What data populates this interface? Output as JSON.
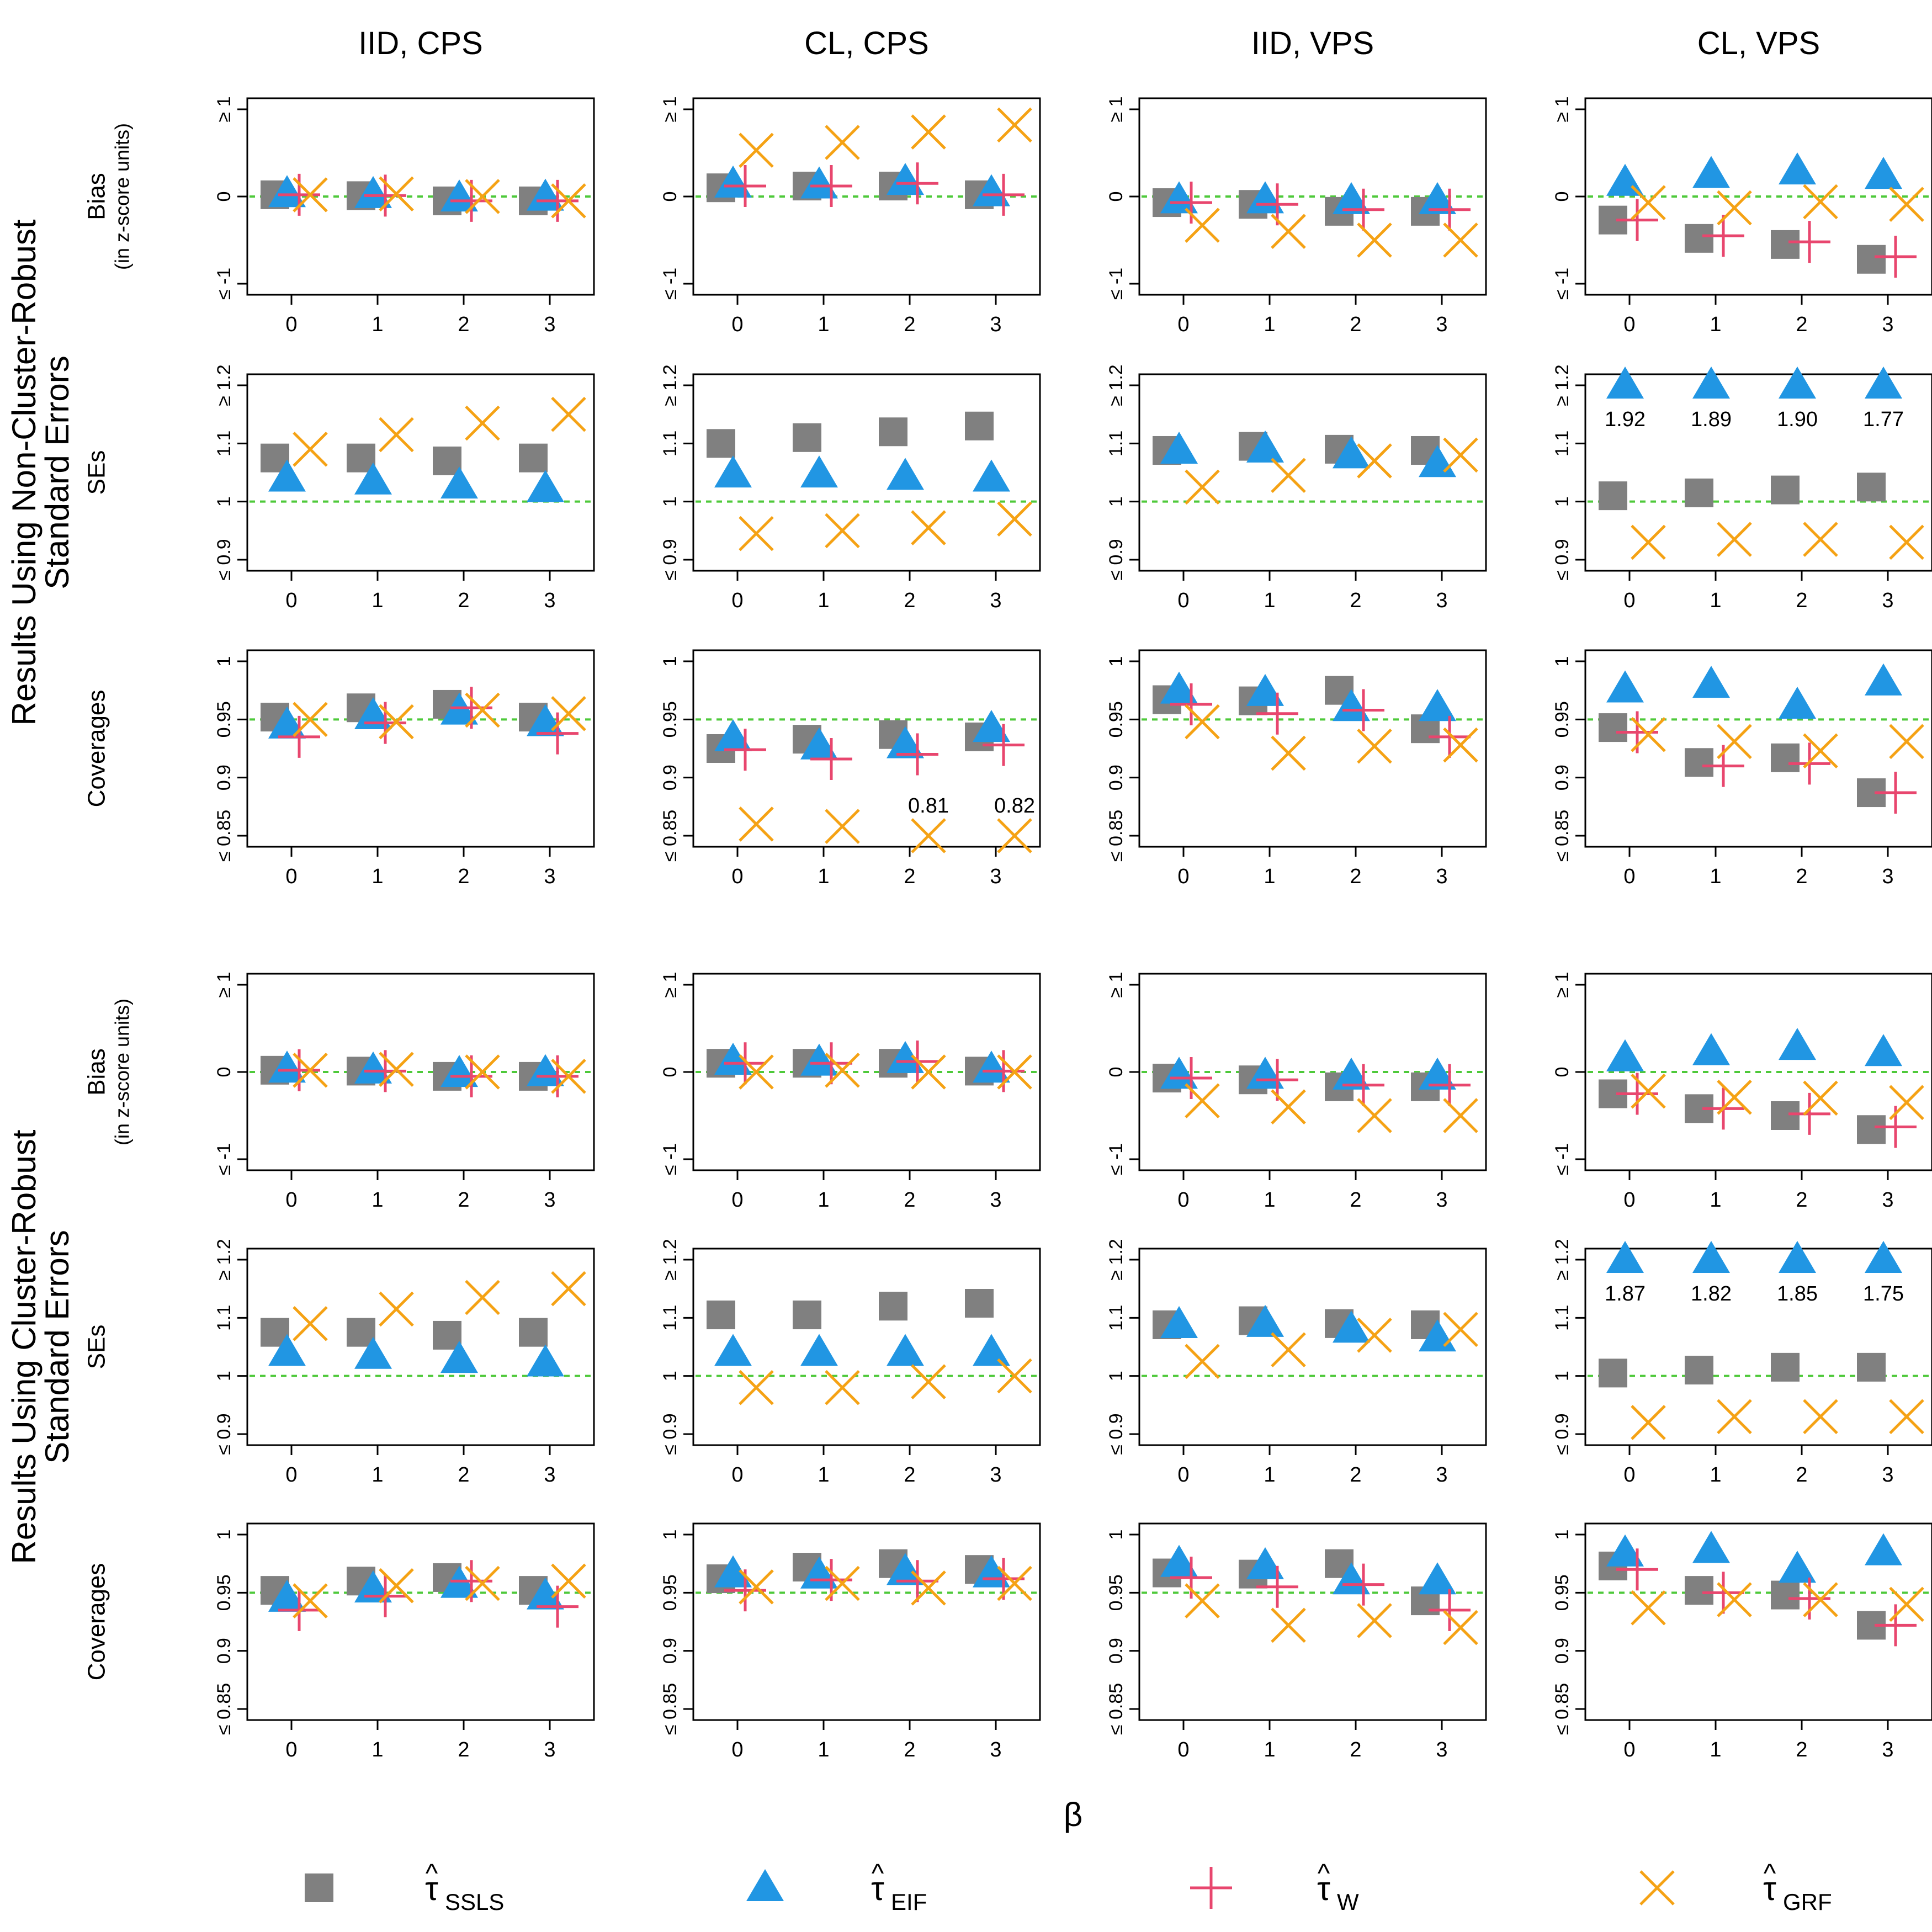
{
  "figure": {
    "column_titles": [
      "IID, CPS",
      "CL, CPS",
      "IID, VPS",
      "CL, VPS"
    ],
    "section_labels": [
      "Results Using Non-Cluster-Robust\nStandard Errors",
      "Results Using Cluster-Robust\nStandard Errors"
    ],
    "row_labels": {
      "bias": [
        "Bias",
        "(in z-score units)"
      ],
      "ses": [
        "SEs"
      ],
      "coverages": [
        "Coverages"
      ]
    },
    "xlabel": "β",
    "legend": [
      {
        "hat": "^",
        "label": "τ",
        "sub": "SSLS"
      },
      {
        "hat": "^",
        "label": "τ",
        "sub": "EIF"
      },
      {
        "hat": "^",
        "label": "τ",
        "sub": "W"
      },
      {
        "hat": "^",
        "label": "τ",
        "sub": "GRF"
      }
    ]
  },
  "chart_data": {
    "type": "scatter",
    "x": [
      0,
      1,
      2,
      3
    ],
    "xlabel": "β",
    "series_order": [
      "SSLS",
      "EIF",
      "W",
      "GRF"
    ],
    "colors": {
      "SSLS": "#808080",
      "EIF": "#2196e3",
      "W": "#e8466e",
      "GRF": "#f5a214",
      "reference": "#4ec93a"
    },
    "markers": {
      "SSLS": "square",
      "EIF": "triangle",
      "W": "plus",
      "GRF": "cross"
    },
    "row_types": {
      "bias": {
        "ylim": [
          -1,
          1
        ],
        "ref": 0,
        "ticks": [
          -1,
          0,
          1
        ],
        "tick_labels": [
          "≤ -1",
          "0",
          "≥ 1"
        ]
      },
      "ses": {
        "ylim": [
          0.9,
          1.2
        ],
        "ref": 1,
        "ticks": [
          0.9,
          1,
          1.1,
          1.2
        ],
        "tick_labels": [
          "≤ 0.9",
          "1",
          "1.1",
          "≥ 1.2"
        ]
      },
      "cov": {
        "ylim": [
          0.85,
          1
        ],
        "ref": 0.95,
        "ticks": [
          0.85,
          0.9,
          0.95,
          1
        ],
        "tick_labels": [
          "≤ 0.85",
          "0.9",
          "0.95",
          "1"
        ]
      }
    },
    "sections": [
      {
        "name": "non-cluster-robust",
        "rows": [
          {
            "type": "bias",
            "panels": [
              {
                "SSLS": [
                  0.02,
                  0.01,
                  -0.05,
                  -0.05
                ],
                "EIF": [
                  0.03,
                  0.02,
                  -0.02,
                  -0.01
                ],
                "W": [
                  0.02,
                  0.01,
                  -0.05,
                  -0.05
                ],
                "GRF": [
                  0.02,
                  0.03,
                  0.0,
                  -0.05
                ]
              },
              {
                "SSLS": [
                  0.1,
                  0.12,
                  0.12,
                  0.02
                ],
                "EIF": [
                  0.14,
                  0.13,
                  0.17,
                  0.04
                ],
                "W": [
                  0.12,
                  0.12,
                  0.15,
                  0.02
                ],
                "GRF": [
                  0.53,
                  0.62,
                  0.74,
                  0.82
                ]
              },
              {
                "SSLS": [
                  -0.07,
                  -0.09,
                  -0.17,
                  -0.17
                ],
                "EIF": [
                  -0.04,
                  -0.04,
                  -0.05,
                  -0.05
                ],
                "W": [
                  -0.07,
                  -0.09,
                  -0.15,
                  -0.15
                ],
                "GRF": [
                  -0.33,
                  -0.4,
                  -0.5,
                  -0.5
                ]
              },
              {
                "SSLS": [
                  -0.27,
                  -0.48,
                  -0.55,
                  -0.72
                ],
                "EIF": [
                  0.16,
                  0.25,
                  0.29,
                  0.24
                ],
                "W": [
                  -0.27,
                  -0.45,
                  -0.52,
                  -0.69
                ],
                "GRF": [
                  -0.07,
                  -0.13,
                  -0.06,
                  -0.09
                ]
              }
            ]
          },
          {
            "type": "ses",
            "panels": [
              {
                "SSLS": [
                  1.075,
                  1.075,
                  1.07,
                  1.075
                ],
                "EIF": [
                  1.04,
                  1.035,
                  1.028,
                  1.022
                ],
                "W": [
                  null,
                  null,
                  null,
                  null
                ],
                "GRF": [
                  1.09,
                  1.115,
                  1.135,
                  1.15
                ]
              },
              {
                "SSLS": [
                  1.1,
                  1.11,
                  1.12,
                  1.13
                ],
                "EIF": [
                  1.047,
                  1.047,
                  1.043,
                  1.04
                ],
                "W": [
                  null,
                  null,
                  null,
                  null
                ],
                "GRF": [
                  0.945,
                  0.95,
                  0.955,
                  0.97
                ]
              },
              {
                "SSLS": [
                  1.088,
                  1.095,
                  1.09,
                  1.088
                ],
                "EIF": [
                  1.088,
                  1.09,
                  1.08,
                  1.065
                ],
                "W": [
                  null,
                  null,
                  null,
                  null
                ],
                "GRF": [
                  1.025,
                  1.045,
                  1.07,
                  1.08
                ]
              },
              {
                "SSLS": [
                  1.01,
                  1.015,
                  1.02,
                  1.025
                ],
                "EIF": [
                  1.92,
                  1.89,
                  1.9,
                  1.77
                ],
                "W": [
                  null,
                  null,
                  null,
                  null
                ],
                "GRF": [
                  0.93,
                  0.935,
                  0.935,
                  0.93
                ]
              }
            ]
          },
          {
            "type": "cov",
            "panels": [
              {
                "SSLS": [
                  0.952,
                  0.96,
                  0.963,
                  0.952
                ],
                "EIF": [
                  0.945,
                  0.953,
                  0.957,
                  0.947
                ],
                "W": [
                  0.935,
                  0.947,
                  0.96,
                  0.938
                ],
                "GRF": [
                  0.95,
                  0.948,
                  0.958,
                  0.955
                ]
              },
              {
                "SSLS": [
                  0.925,
                  0.933,
                  0.937,
                  0.935
                ],
                "EIF": [
                  0.934,
                  0.927,
                  0.928,
                  0.942
                ],
                "W": [
                  0.924,
                  0.916,
                  0.92,
                  0.928
                ],
                "GRF": [
                  0.86,
                  0.858,
                  0.81,
                  0.82
                ]
              },
              {
                "SSLS": [
                  0.967,
                  0.966,
                  0.975,
                  0.942
                ],
                "EIF": [
                  0.975,
                  0.973,
                  0.96,
                  0.96
                ],
                "W": [
                  0.963,
                  0.955,
                  0.958,
                  0.935
                ],
                "GRF": [
                  0.948,
                  0.921,
                  0.927,
                  0.928
                ]
              },
              {
                "SSLS": [
                  0.943,
                  0.913,
                  0.917,
                  0.887
                ],
                "EIF": [
                  0.976,
                  0.98,
                  0.962,
                  0.982
                ],
                "W": [
                  0.939,
                  0.91,
                  0.912,
                  0.887
                ],
                "GRF": [
                  0.937,
                  0.931,
                  0.923,
                  0.931
                ]
              }
            ]
          }
        ]
      },
      {
        "name": "cluster-robust",
        "rows": [
          {
            "type": "bias",
            "panels": [
              {
                "SSLS": [
                  0.02,
                  0.01,
                  -0.05,
                  -0.05
                ],
                "EIF": [
                  0.03,
                  0.02,
                  -0.02,
                  -0.01
                ],
                "W": [
                  0.02,
                  0.01,
                  -0.05,
                  -0.05
                ],
                "GRF": [
                  0.02,
                  0.03,
                  0.0,
                  -0.05
                ]
              },
              {
                "SSLS": [
                  0.1,
                  0.1,
                  0.1,
                  0.01
                ],
                "EIF": [
                  0.12,
                  0.11,
                  0.14,
                  0.03
                ],
                "W": [
                  0.1,
                  0.1,
                  0.12,
                  0.01
                ],
                "GRF": [
                  0.0,
                  0.02,
                  0.0,
                  0.0
                ]
              },
              {
                "SSLS": [
                  -0.07,
                  -0.09,
                  -0.17,
                  -0.17
                ],
                "EIF": [
                  -0.04,
                  -0.04,
                  -0.05,
                  -0.05
                ],
                "W": [
                  -0.07,
                  -0.09,
                  -0.15,
                  -0.15
                ],
                "GRF": [
                  -0.33,
                  -0.4,
                  -0.5,
                  -0.5
                ]
              },
              {
                "SSLS": [
                  -0.25,
                  -0.42,
                  -0.5,
                  -0.66
                ],
                "EIF": [
                  0.16,
                  0.23,
                  0.29,
                  0.22
                ],
                "W": [
                  -0.25,
                  -0.42,
                  -0.48,
                  -0.63
                ],
                "GRF": [
                  -0.22,
                  -0.29,
                  -0.3,
                  -0.35
                ]
              }
            ]
          },
          {
            "type": "ses",
            "panels": [
              {
                "SSLS": [
                  1.075,
                  1.075,
                  1.07,
                  1.075
                ],
                "EIF": [
                  1.04,
                  1.035,
                  1.028,
                  1.022
                ],
                "W": [
                  null,
                  null,
                  null,
                  null
                ],
                "GRF": [
                  1.09,
                  1.115,
                  1.135,
                  1.15
                ]
              },
              {
                "SSLS": [
                  1.105,
                  1.105,
                  1.12,
                  1.125
                ],
                "EIF": [
                  1.04,
                  1.04,
                  1.04,
                  1.04
                ],
                "W": [
                  null,
                  null,
                  null,
                  null
                ],
                "GRF": [
                  0.98,
                  0.98,
                  0.99,
                  1.0
                ]
              },
              {
                "SSLS": [
                  1.088,
                  1.095,
                  1.09,
                  1.088
                ],
                "EIF": [
                  1.088,
                  1.09,
                  1.08,
                  1.065
                ],
                "W": [
                  null,
                  null,
                  null,
                  null
                ],
                "GRF": [
                  1.025,
                  1.045,
                  1.07,
                  1.08
                ]
              },
              {
                "SSLS": [
                  1.005,
                  1.01,
                  1.015,
                  1.015
                ],
                "EIF": [
                  1.87,
                  1.82,
                  1.85,
                  1.75
                ],
                "W": [
                  null,
                  null,
                  null,
                  null
                ],
                "GRF": [
                  0.92,
                  0.93,
                  0.93,
                  0.93
                ]
              }
            ]
          },
          {
            "type": "cov",
            "panels": [
              {
                "SSLS": [
                  0.952,
                  0.96,
                  0.963,
                  0.952
                ],
                "EIF": [
                  0.945,
                  0.953,
                  0.957,
                  0.947
                ],
                "W": [
                  0.935,
                  0.947,
                  0.96,
                  0.938
                ],
                "GRF": [
                  0.943,
                  0.956,
                  0.958,
                  0.96
                ]
              },
              {
                "SSLS": [
                  0.962,
                  0.972,
                  0.975,
                  0.97
                ],
                "EIF": [
                  0.966,
                  0.965,
                  0.968,
                  0.966
                ],
                "W": [
                  0.952,
                  0.961,
                  0.96,
                  0.962
                ],
                "GRF": [
                  0.955,
                  0.958,
                  0.954,
                  0.958
                ]
              },
              {
                "SSLS": [
                  0.967,
                  0.966,
                  0.975,
                  0.943
                ],
                "EIF": [
                  0.975,
                  0.973,
                  0.96,
                  0.96
                ],
                "W": [
                  0.963,
                  0.955,
                  0.957,
                  0.935
                ],
                "GRF": [
                  0.943,
                  0.922,
                  0.926,
                  0.92
                ]
              },
              {
                "SSLS": [
                  0.973,
                  0.952,
                  0.948,
                  0.922
                ],
                "EIF": [
                  0.984,
                  0.987,
                  0.97,
                  0.985
                ],
                "W": [
                  0.97,
                  0.95,
                  0.945,
                  0.922
                ],
                "GRF": [
                  0.937,
                  0.944,
                  0.944,
                  0.94
                ]
              }
            ]
          }
        ]
      }
    ],
    "annotations": [
      {
        "section": 0,
        "row": 1,
        "col": 3,
        "series": "EIF",
        "labels": [
          "1.92",
          "1.89",
          "1.90",
          "1.77"
        ]
      },
      {
        "section": 0,
        "row": 2,
        "col": 1,
        "series": "GRF",
        "labels": [
          "",
          "",
          "0.81",
          "0.82"
        ]
      },
      {
        "section": 1,
        "row": 1,
        "col": 3,
        "series": "EIF",
        "labels": [
          "1.87",
          "1.82",
          "1.85",
          "1.75"
        ]
      }
    ]
  }
}
